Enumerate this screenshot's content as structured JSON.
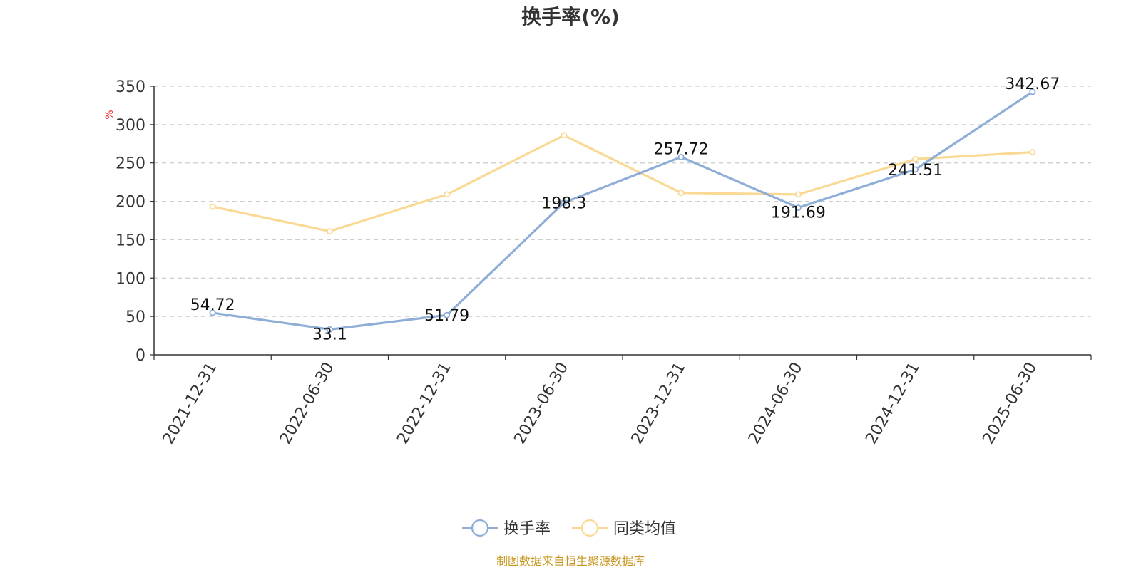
{
  "chart_data": {
    "type": "line",
    "title": "换手率(%)",
    "ylabel": "%",
    "xlabel": "",
    "categories": [
      "2021-12-31",
      "2022-06-30",
      "2022-12-31",
      "2023-06-30",
      "2023-12-31",
      "2024-06-30",
      "2024-12-31",
      "2025-06-30"
    ],
    "ylim": [
      0,
      350
    ],
    "yticks": [
      0,
      50,
      100,
      150,
      200,
      250,
      300,
      350
    ],
    "grid": true,
    "legend_position": "bottom-center",
    "series": [
      {
        "name": "换手率",
        "color": "#8eaed8",
        "values": [
          54.72,
          33.1,
          51.79,
          198.3,
          257.72,
          191.69,
          241.51,
          342.67
        ],
        "labels": [
          "54.72",
          "33.1",
          "51.79",
          "198.3",
          "257.72",
          "191.69",
          "241.51",
          "342.67"
        ]
      },
      {
        "name": "同类均值",
        "color": "#fad994",
        "values": [
          193,
          161,
          209,
          286,
          211,
          209,
          255,
          264
        ]
      }
    ]
  },
  "source_note": "制图数据来自恒生聚源数据库"
}
